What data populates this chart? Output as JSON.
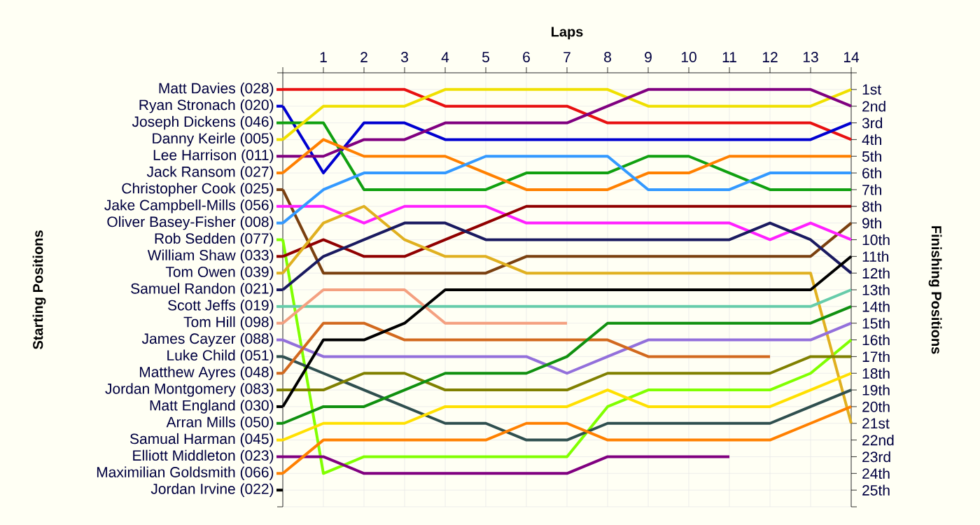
{
  "chart_data": {
    "type": "line",
    "xlabel": "Laps",
    "legend_title": "Starting Positions",
    "y2label": "Finishing Positions",
    "x": [
      0,
      1,
      2,
      3,
      4,
      5,
      6,
      7,
      8,
      9,
      10,
      11,
      12,
      13,
      14
    ],
    "xlim": [
      0,
      14
    ],
    "xticks": [
      {
        "value": 0,
        "label": null
      },
      1,
      2,
      3,
      4,
      5,
      6,
      7,
      8,
      9,
      10,
      11,
      12,
      13,
      14
    ],
    "legend": "left",
    "y2lim": [
      26,
      0
    ],
    "y2ticks": [
      {
        "value": 0,
        "label": null
      },
      {
        "value": 1,
        "label": "1st"
      },
      {
        "value": 2,
        "label": "2nd"
      },
      {
        "value": 3,
        "label": "3rd"
      },
      {
        "value": 4,
        "label": "4th"
      },
      {
        "value": 5,
        "label": "5th"
      },
      {
        "value": 6,
        "label": "6th"
      },
      {
        "value": 7,
        "label": "7th"
      },
      {
        "value": 8,
        "label": "8th"
      },
      {
        "value": 9,
        "label": "9th"
      },
      {
        "value": 10,
        "label": "10th"
      },
      {
        "value": 11,
        "label": "11th"
      },
      {
        "value": 12,
        "label": "12th"
      },
      {
        "value": 13,
        "label": "13th"
      },
      {
        "value": 14,
        "label": "14th"
      },
      {
        "value": 15,
        "label": "15th"
      },
      {
        "value": 16,
        "label": "16th"
      },
      {
        "value": 17,
        "label": "17th"
      },
      {
        "value": 18,
        "label": "18th"
      },
      {
        "value": 19,
        "label": "19th"
      },
      {
        "value": 20,
        "label": "20th"
      },
      {
        "value": 21,
        "label": "21st"
      },
      {
        "value": 22,
        "label": "22nd"
      },
      {
        "value": 23,
        "label": "23rd"
      },
      {
        "value": 24,
        "label": "24th"
      },
      {
        "value": 25,
        "label": "25th"
      },
      {
        "value": 26,
        "label": null
      }
    ],
    "grid": true,
    "marker": "none",
    "line_style": "solid",
    "series": [
      {
        "name": "Matt Davies (028)",
        "axis": "y2",
        "color": "#e81010",
        "values": [
          1,
          1,
          1,
          1,
          2,
          2,
          2,
          2,
          3,
          3,
          3,
          3,
          3,
          3,
          4
        ]
      },
      {
        "name": "Ryan Stronach (020)",
        "axis": "y2",
        "color": "#0000d0",
        "values": [
          2,
          6,
          3,
          3,
          4,
          4,
          4,
          4,
          4,
          4,
          4,
          4,
          4,
          4,
          3
        ]
      },
      {
        "name": "Joseph Dickens (046)",
        "axis": "y2",
        "color": "#10a010",
        "values": [
          3,
          3,
          7,
          7,
          7,
          7,
          6,
          6,
          6,
          5,
          5,
          6,
          7,
          7,
          7
        ]
      },
      {
        "name": "Danny Keirle (005)",
        "axis": "y2",
        "color": "#f0e000",
        "values": [
          4,
          2,
          2,
          2,
          1,
          1,
          1,
          1,
          1,
          2,
          2,
          2,
          2,
          2,
          1
        ]
      },
      {
        "name": "Lee Harrison (011)",
        "axis": "y2",
        "color": "#800080",
        "values": [
          5,
          5,
          4,
          4,
          3,
          3,
          3,
          3,
          2,
          1,
          1,
          1,
          1,
          1,
          2
        ]
      },
      {
        "name": "Jack Ransom (027)",
        "axis": "y2",
        "color": "#ff8000",
        "values": [
          6,
          4,
          5,
          5,
          5,
          6,
          7,
          7,
          7,
          6,
          6,
          5,
          5,
          5,
          5
        ]
      },
      {
        "name": "Christopher Cook (025)",
        "axis": "y2",
        "color": "#7a4010",
        "values": [
          7,
          12,
          12,
          12,
          12,
          12,
          11,
          11,
          11,
          11,
          11,
          11,
          11,
          11,
          9
        ]
      },
      {
        "name": "Jake Campbell-Mills (056)",
        "axis": "y2",
        "color": "#ff20ff",
        "values": [
          8,
          8,
          9,
          8,
          8,
          8,
          9,
          9,
          9,
          9,
          9,
          9,
          10,
          9,
          10
        ]
      },
      {
        "name": "Oliver Basey-Fisher (008)",
        "axis": "y2",
        "color": "#3399ff",
        "values": [
          9,
          7,
          6,
          6,
          6,
          5,
          5,
          5,
          5,
          7,
          7,
          7,
          6,
          6,
          6
        ]
      },
      {
        "name": "Rob Sedden (077)",
        "axis": "y2",
        "color": "#80ff00",
        "values": [
          10,
          24,
          23,
          23,
          23,
          23,
          23,
          23,
          20,
          19,
          19,
          19,
          19,
          18,
          16
        ]
      },
      {
        "name": "William Shaw (033)",
        "axis": "y2",
        "color": "#900000",
        "values": [
          11,
          10,
          11,
          11,
          10,
          9,
          8,
          8,
          8,
          8,
          8,
          8,
          8,
          8,
          8
        ]
      },
      {
        "name": "Tom Owen (039)",
        "axis": "y2",
        "color": "#e0b020",
        "values": [
          12,
          9,
          8,
          10,
          11,
          11,
          12,
          12,
          12,
          12,
          12,
          12,
          12,
          12,
          21
        ]
      },
      {
        "name": "Samuel Randon (021)",
        "axis": "y2",
        "color": "#1a1a60",
        "values": [
          13,
          11,
          10,
          9,
          9,
          10,
          10,
          10,
          10,
          10,
          10,
          10,
          9,
          10,
          12
        ]
      },
      {
        "name": "Scott Jeffs (019)",
        "axis": "y2",
        "color": "#66ccaa",
        "values": [
          14,
          14,
          14,
          14,
          14,
          14,
          14,
          14,
          14,
          14,
          14,
          14,
          14,
          14,
          13
        ]
      },
      {
        "name": "Tom Hill (098)",
        "axis": "y2",
        "color": "#f4a080",
        "values": [
          15,
          13,
          13,
          13,
          15,
          15,
          15,
          15,
          null,
          null,
          null,
          null,
          null,
          null,
          null
        ]
      },
      {
        "name": "James Cayzer (088)",
        "axis": "y2",
        "color": "#9370db",
        "values": [
          16,
          17,
          17,
          17,
          17,
          17,
          17,
          18,
          17,
          16,
          16,
          16,
          16,
          16,
          15
        ]
      },
      {
        "name": "Luke Child (051)",
        "axis": "y2",
        "color": "#2f4f4f",
        "values": [
          17,
          18,
          19,
          20,
          21,
          21,
          22,
          22,
          21,
          21,
          21,
          21,
          21,
          20,
          19
        ]
      },
      {
        "name": "Matthew Ayres (048)",
        "axis": "y2",
        "color": "#d2691e",
        "values": [
          18,
          15,
          15,
          16,
          16,
          16,
          16,
          16,
          16,
          17,
          17,
          17,
          17,
          null,
          null
        ]
      },
      {
        "name": "Jordan Montgomery (083)",
        "axis": "y2",
        "color": "#808000",
        "values": [
          19,
          19,
          18,
          18,
          19,
          19,
          19,
          19,
          18,
          18,
          18,
          18,
          18,
          17,
          17
        ]
      },
      {
        "name": "Matt England (030)",
        "axis": "y2",
        "color": "#000000",
        "values": [
          20,
          16,
          16,
          15,
          13,
          13,
          13,
          13,
          13,
          13,
          13,
          13,
          13,
          13,
          11
        ]
      },
      {
        "name": "Arran Mills (050)",
        "axis": "y2",
        "color": "#109010",
        "values": [
          21,
          20,
          20,
          19,
          18,
          18,
          18,
          17,
          15,
          15,
          15,
          15,
          15,
          15,
          14
        ]
      },
      {
        "name": "Samual Harman (045)",
        "axis": "y2",
        "color": "#ffe000",
        "values": [
          22,
          21,
          21,
          21,
          20,
          20,
          20,
          20,
          19,
          20,
          20,
          20,
          20,
          19,
          18
        ]
      },
      {
        "name": "Elliott Middleton (023)",
        "axis": "y2",
        "color": "#800080",
        "values": [
          23,
          23,
          24,
          24,
          24,
          24,
          24,
          24,
          23,
          23,
          23,
          23,
          null,
          null,
          null
        ]
      },
      {
        "name": "Maximilian Goldsmith (066)",
        "axis": "y2",
        "color": "#ff8000",
        "values": [
          24,
          22,
          22,
          22,
          22,
          22,
          21,
          21,
          22,
          22,
          22,
          22,
          22,
          21,
          20
        ]
      },
      {
        "name": "Jordan Irvine (022)",
        "axis": "y2",
        "color": "#000000",
        "values": [
          null,
          null,
          null,
          null,
          null,
          null,
          null,
          null,
          null,
          null,
          null,
          null,
          null,
          null,
          null
        ]
      }
    ]
  }
}
